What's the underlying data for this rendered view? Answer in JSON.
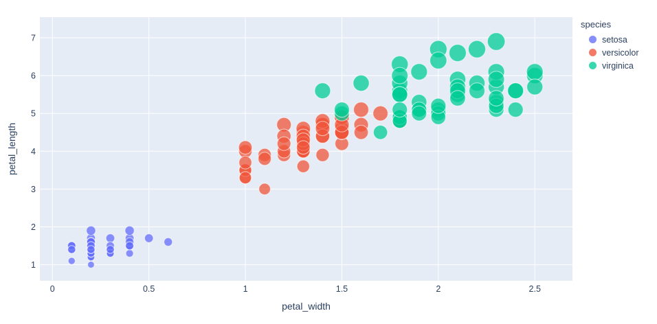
{
  "colors": {
    "paper_bg": "#ffffff",
    "plot_bg": "#e5ecf6",
    "grid": "#ffffff",
    "text": "#2a3f5f"
  },
  "legend": {
    "title": "species",
    "items": [
      "setosa",
      "versicolor",
      "virginica"
    ]
  },
  "chart_data": {
    "type": "scatter",
    "title": "",
    "xlabel": "petal_width",
    "ylabel": "petal_length",
    "legend_title": "species",
    "legend_position": "top-right",
    "grid": true,
    "xlim": [
      -0.065,
      2.695
    ],
    "ylim": [
      0.575,
      7.545
    ],
    "x_ticks": [
      "0",
      "0.5",
      "1",
      "1.5",
      "2",
      "2.5"
    ],
    "y_ticks": [
      "1",
      "2",
      "3",
      "4",
      "5",
      "6",
      "7"
    ],
    "size_by": "petal_length",
    "size_max_value": 6.9,
    "marker_opacity": 0.75,
    "series": [
      {
        "name": "setosa",
        "color": "#636EFA",
        "points": [
          [
            0.2,
            1.4
          ],
          [
            0.2,
            1.4
          ],
          [
            0.2,
            1.3
          ],
          [
            0.2,
            1.5
          ],
          [
            0.2,
            1.4
          ],
          [
            0.4,
            1.7
          ],
          [
            0.3,
            1.4
          ],
          [
            0.2,
            1.5
          ],
          [
            0.2,
            1.4
          ],
          [
            0.1,
            1.5
          ],
          [
            0.2,
            1.5
          ],
          [
            0.2,
            1.6
          ],
          [
            0.1,
            1.4
          ],
          [
            0.1,
            1.1
          ],
          [
            0.2,
            1.2
          ],
          [
            0.4,
            1.5
          ],
          [
            0.4,
            1.3
          ],
          [
            0.3,
            1.4
          ],
          [
            0.3,
            1.7
          ],
          [
            0.3,
            1.5
          ],
          [
            0.2,
            1.7
          ],
          [
            0.4,
            1.5
          ],
          [
            0.2,
            1.0
          ],
          [
            0.5,
            1.7
          ],
          [
            0.2,
            1.9
          ],
          [
            0.2,
            1.6
          ],
          [
            0.4,
            1.6
          ],
          [
            0.2,
            1.5
          ],
          [
            0.2,
            1.4
          ],
          [
            0.2,
            1.6
          ],
          [
            0.2,
            1.6
          ],
          [
            0.4,
            1.5
          ],
          [
            0.1,
            1.5
          ],
          [
            0.2,
            1.4
          ],
          [
            0.2,
            1.5
          ],
          [
            0.2,
            1.2
          ],
          [
            0.2,
            1.3
          ],
          [
            0.1,
            1.4
          ],
          [
            0.2,
            1.3
          ],
          [
            0.2,
            1.5
          ],
          [
            0.3,
            1.3
          ],
          [
            0.3,
            1.3
          ],
          [
            0.2,
            1.3
          ],
          [
            0.6,
            1.6
          ],
          [
            0.4,
            1.9
          ],
          [
            0.3,
            1.4
          ],
          [
            0.2,
            1.6
          ],
          [
            0.2,
            1.4
          ],
          [
            0.2,
            1.5
          ],
          [
            0.2,
            1.4
          ]
        ]
      },
      {
        "name": "versicolor",
        "color": "#EF553B",
        "points": [
          [
            1.4,
            4.7
          ],
          [
            1.5,
            4.5
          ],
          [
            1.5,
            4.9
          ],
          [
            1.3,
            4.0
          ],
          [
            1.5,
            4.6
          ],
          [
            1.3,
            4.5
          ],
          [
            1.6,
            4.7
          ],
          [
            1.0,
            3.3
          ],
          [
            1.3,
            4.6
          ],
          [
            1.4,
            3.9
          ],
          [
            1.0,
            3.5
          ],
          [
            1.5,
            4.2
          ],
          [
            1.0,
            4.0
          ],
          [
            1.4,
            4.7
          ],
          [
            1.3,
            3.6
          ],
          [
            1.4,
            4.4
          ],
          [
            1.5,
            4.5
          ],
          [
            1.0,
            4.1
          ],
          [
            1.5,
            4.5
          ],
          [
            1.1,
            3.9
          ],
          [
            1.8,
            4.8
          ],
          [
            1.3,
            4.0
          ],
          [
            1.5,
            4.9
          ],
          [
            1.2,
            4.7
          ],
          [
            1.3,
            4.3
          ],
          [
            1.4,
            4.4
          ],
          [
            1.4,
            4.8
          ],
          [
            1.7,
            5.0
          ],
          [
            1.5,
            4.5
          ],
          [
            1.0,
            3.5
          ],
          [
            1.1,
            3.8
          ],
          [
            1.0,
            3.7
          ],
          [
            1.2,
            3.9
          ],
          [
            1.6,
            5.1
          ],
          [
            1.5,
            4.5
          ],
          [
            1.6,
            4.5
          ],
          [
            1.5,
            4.7
          ],
          [
            1.3,
            4.4
          ],
          [
            1.3,
            4.1
          ],
          [
            1.3,
            4.0
          ],
          [
            1.2,
            4.4
          ],
          [
            1.4,
            4.6
          ],
          [
            1.2,
            4.0
          ],
          [
            1.0,
            3.3
          ],
          [
            1.3,
            4.2
          ],
          [
            1.2,
            4.2
          ],
          [
            1.3,
            4.2
          ],
          [
            1.3,
            4.3
          ],
          [
            1.1,
            3.0
          ],
          [
            1.3,
            4.1
          ]
        ]
      },
      {
        "name": "virginica",
        "color": "#00CC96",
        "points": [
          [
            2.5,
            6.0
          ],
          [
            1.9,
            5.1
          ],
          [
            2.1,
            5.9
          ],
          [
            1.8,
            5.6
          ],
          [
            2.2,
            5.8
          ],
          [
            2.1,
            6.6
          ],
          [
            1.7,
            4.5
          ],
          [
            1.8,
            6.3
          ],
          [
            1.8,
            5.8
          ],
          [
            2.5,
            6.1
          ],
          [
            2.0,
            5.1
          ],
          [
            1.9,
            5.3
          ],
          [
            2.1,
            5.5
          ],
          [
            2.0,
            5.0
          ],
          [
            2.4,
            5.1
          ],
          [
            2.3,
            5.3
          ],
          [
            1.8,
            5.5
          ],
          [
            2.2,
            6.7
          ],
          [
            2.3,
            6.9
          ],
          [
            1.5,
            5.0
          ],
          [
            2.3,
            5.7
          ],
          [
            2.0,
            4.9
          ],
          [
            2.0,
            6.7
          ],
          [
            1.8,
            4.9
          ],
          [
            2.1,
            5.7
          ],
          [
            1.8,
            6.0
          ],
          [
            1.8,
            4.8
          ],
          [
            1.8,
            4.9
          ],
          [
            2.1,
            5.6
          ],
          [
            1.6,
            5.8
          ],
          [
            1.9,
            6.1
          ],
          [
            2.0,
            6.4
          ],
          [
            2.2,
            5.6
          ],
          [
            1.5,
            5.1
          ],
          [
            1.4,
            5.6
          ],
          [
            2.3,
            6.1
          ],
          [
            2.4,
            5.6
          ],
          [
            1.8,
            5.5
          ],
          [
            1.8,
            4.8
          ],
          [
            2.1,
            5.4
          ],
          [
            2.4,
            5.6
          ],
          [
            2.3,
            5.1
          ],
          [
            1.9,
            5.1
          ],
          [
            2.3,
            5.9
          ],
          [
            2.5,
            5.7
          ],
          [
            2.3,
            5.2
          ],
          [
            1.9,
            5.0
          ],
          [
            2.0,
            5.2
          ],
          [
            2.3,
            5.4
          ],
          [
            1.8,
            5.1
          ]
        ]
      }
    ]
  }
}
